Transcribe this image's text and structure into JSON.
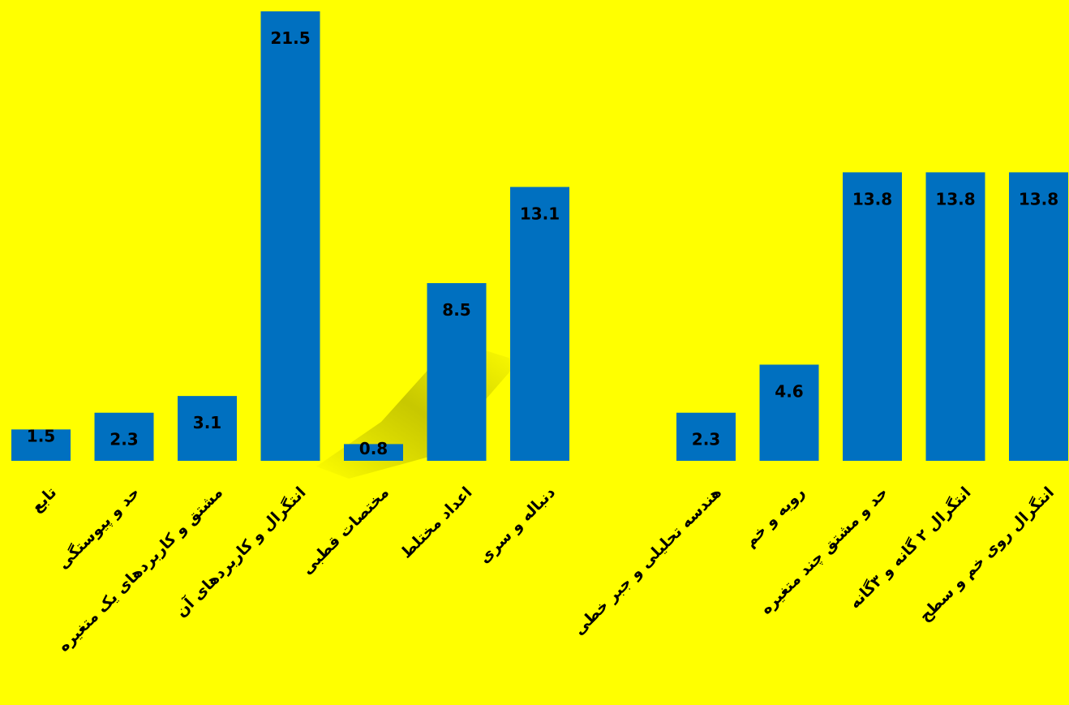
{
  "chart_data": {
    "type": "bar",
    "categories": [
      "تابع",
      "حد و پیوستگی",
      "مشتق و کاربردهای یک متغیره",
      "انتگرال و کاربردهای آن",
      "مختصات قطبی",
      "اعداد مختلط",
      "دنباله و سری",
      "",
      "هندسه تحلیلی و جبر خطی",
      "رویه و خم",
      "حد و مشتق چند متغیره",
      "انتگرال ۲ گانه و ۳گانه",
      "انتگرال روی خم و سطح"
    ],
    "values": [
      1.5,
      2.3,
      3.1,
      21.5,
      0.8,
      8.5,
      13.1,
      null,
      2.3,
      4.6,
      13.8,
      13.8,
      13.8
    ],
    "data_labels": [
      "1.5",
      "2.3",
      "3.1",
      "21.5",
      "0.8",
      "8.5",
      "13.1",
      "",
      "2.3",
      "4.6",
      "13.8",
      "13.8",
      "13.8"
    ],
    "ylim": [
      0,
      21.5
    ],
    "grid": false,
    "legend": "none",
    "bar_color": "#0070c0",
    "background_color": "#ffff00"
  }
}
